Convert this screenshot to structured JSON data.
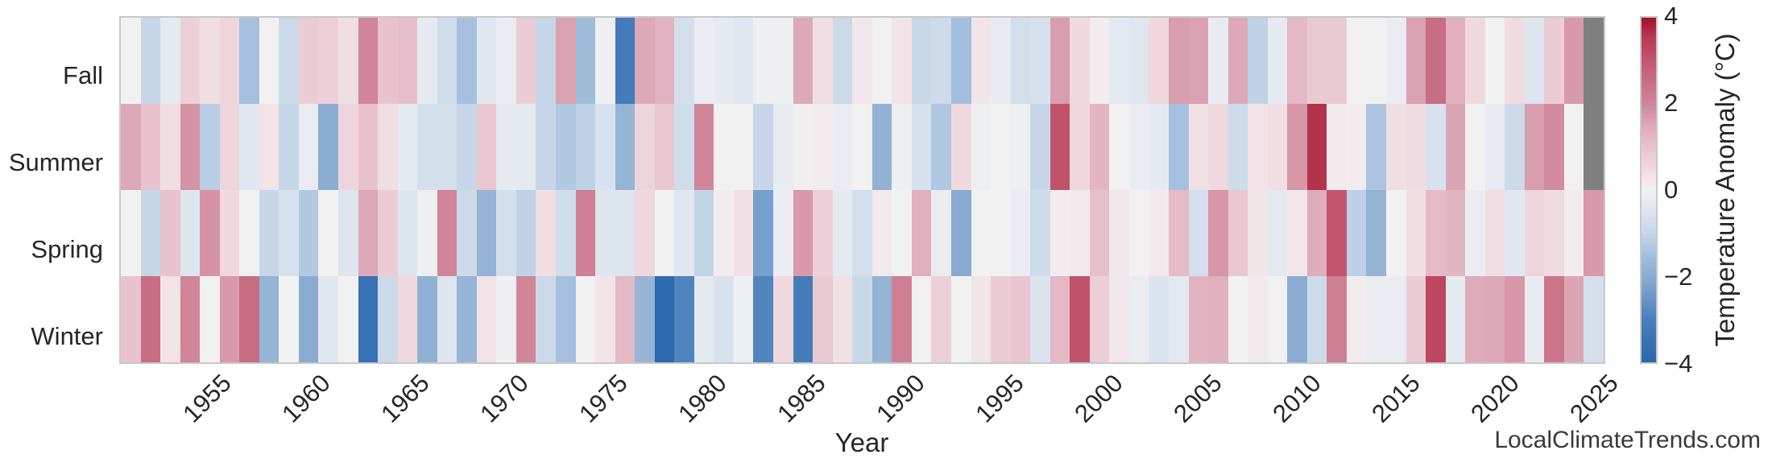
{
  "figure": {
    "watermark": "LocalClimateTrends.com"
  },
  "chart_data": {
    "type": "heatmap",
    "title": "",
    "xlabel": "Year",
    "ylabel": "",
    "rows": [
      "Fall",
      "Summer",
      "Spring",
      "Winter"
    ],
    "x": [
      1950,
      1951,
      1952,
      1953,
      1954,
      1955,
      1956,
      1957,
      1958,
      1959,
      1960,
      1961,
      1962,
      1963,
      1964,
      1965,
      1966,
      1967,
      1968,
      1969,
      1970,
      1971,
      1972,
      1973,
      1974,
      1975,
      1976,
      1977,
      1978,
      1979,
      1980,
      1981,
      1982,
      1983,
      1984,
      1985,
      1986,
      1987,
      1988,
      1989,
      1990,
      1991,
      1992,
      1993,
      1994,
      1995,
      1996,
      1997,
      1998,
      1999,
      2000,
      2001,
      2002,
      2003,
      2004,
      2005,
      2006,
      2007,
      2008,
      2009,
      2010,
      2011,
      2012,
      2013,
      2014,
      2015,
      2016,
      2017,
      2018,
      2019,
      2020,
      2021,
      2022,
      2023,
      2024
    ],
    "series": [
      {
        "name": "Fall",
        "values": [
          0,
          -1.0,
          -0.3,
          0.7,
          0.4,
          0.6,
          -1.5,
          0,
          -0.9,
          0.8,
          0.7,
          0.4,
          2.0,
          1.0,
          1.1,
          -0.3,
          -0.8,
          -1.5,
          -0.4,
          -0.2,
          0.8,
          -1.0,
          1.6,
          -1.6,
          -0.1,
          -3.2,
          1.5,
          1.3,
          -0.7,
          -0.2,
          -0.3,
          -0.4,
          -0.1,
          -0.1,
          1.5,
          0.4,
          -0.9,
          0.2,
          0,
          0.3,
          -0.95,
          -0.85,
          -1.55,
          0.25,
          -0.25,
          -0.75,
          -0.65,
          1.65,
          0.5,
          0.1,
          -0.35,
          -0.45,
          0.55,
          1.65,
          1.6,
          -0.25,
          1.5,
          -1.1,
          -0.3,
          1.2,
          0.85,
          0.85,
          0,
          0,
          -0.2,
          1.6,
          2.5,
          1.35,
          0.5,
          0,
          0.45,
          -0.5,
          0.8,
          1.7,
          null
        ]
      },
      {
        "name": "Summer",
        "values": [
          1.5,
          1.0,
          0.4,
          1.8,
          -1.2,
          0.6,
          -0.4,
          0.3,
          -1.0,
          -0.2,
          -2.0,
          0.6,
          1.0,
          0.4,
          -0.3,
          -0.7,
          -0.7,
          -1.0,
          0.9,
          -0.3,
          -0.3,
          -1.0,
          -1.3,
          -1.1,
          -0.6,
          -1.8,
          0.6,
          0.9,
          -0.8,
          2.0,
          0,
          0,
          -1.0,
          -0.25,
          0.05,
          0.1,
          -0.2,
          0,
          -1.85,
          -0.1,
          -0.65,
          -1.35,
          0.5,
          -0.1,
          0,
          -0.1,
          -1.0,
          3.1,
          0.55,
          1.25,
          0,
          -0.2,
          -0.3,
          -1.5,
          0.35,
          0.5,
          -0.85,
          0.3,
          0.4,
          1.75,
          3.6,
          0.15,
          0.1,
          -1.4,
          0.4,
          0.45,
          -0.6,
          1.55,
          0,
          -0.25,
          -0.9,
          1.65,
          1.9,
          0,
          null
        ]
      },
      {
        "name": "Spring",
        "values": [
          0,
          -1.0,
          1.0,
          -0.5,
          1.8,
          0.5,
          0,
          -1.0,
          -0.6,
          -1.3,
          0,
          -0.5,
          1.5,
          0.8,
          -0.5,
          -0.1,
          2.0,
          -0.9,
          -1.8,
          -0.7,
          -1.1,
          0.4,
          -0.8,
          2.1,
          -0.5,
          -0.5,
          0.55,
          0,
          -0.4,
          -1.05,
          0.1,
          0.35,
          -2.3,
          -0.2,
          1.7,
          0.7,
          -0.3,
          -0.75,
          0.15,
          0,
          1.35,
          -0.2,
          -2.05,
          0,
          0,
          -0.2,
          -0.85,
          0.1,
          0.15,
          1.05,
          0.2,
          0,
          0.15,
          1.15,
          -0.7,
          1.75,
          0.9,
          0.25,
          -0.35,
          0.2,
          1.4,
          3.0,
          -1.15,
          -1.8,
          0,
          0.4,
          1.15,
          1.25,
          -0.2,
          0.4,
          -0.4,
          0.6,
          0.45,
          0.1,
          1.7
        ]
      },
      {
        "name": "Winter",
        "values": [
          1.0,
          2.5,
          0.3,
          2.0,
          0,
          1.7,
          2.5,
          -1.8,
          0,
          -2.0,
          -0.4,
          0,
          -3.6,
          -0.9,
          0.5,
          -1.9,
          -0.5,
          -1.8,
          0.3,
          -0.05,
          2.0,
          -0.9,
          -1.5,
          0,
          0.3,
          1.2,
          -1.8,
          -3.9,
          -2.9,
          -0.3,
          -0.6,
          -0.1,
          -2.9,
          0.5,
          -3.2,
          0.85,
          0.35,
          -0.95,
          -1.8,
          2.1,
          0,
          0.7,
          0,
          0.25,
          0.8,
          0.95,
          -0.55,
          1.2,
          3.1,
          0.75,
          0.2,
          -0.2,
          -0.55,
          -0.35,
          1.3,
          1.35,
          0,
          0.15,
          0,
          -2.0,
          -0.85,
          2.1,
          0.1,
          -0.2,
          -0.2,
          0.8,
          3.3,
          -0.3,
          1.45,
          1.5,
          1.75,
          -0.25,
          2.35,
          1.55,
          -0.7
        ]
      }
    ],
    "x_ticks": [
      "1955",
      "1960",
      "1965",
      "1970",
      "1975",
      "1980",
      "1985",
      "1990",
      "1995",
      "2000",
      "2005",
      "2010",
      "2015",
      "2020",
      "2025"
    ],
    "x_tick_years": [
      1955,
      1960,
      1965,
      1970,
      1975,
      1980,
      1985,
      1990,
      1995,
      2000,
      2005,
      2010,
      2015,
      2020,
      2025
    ],
    "colorbar": {
      "label": "Temperature Anomaly (°C)",
      "ticks": [
        "4",
        "2",
        "0",
        "−2",
        "−4"
      ],
      "tick_values": [
        4,
        2,
        0,
        -2,
        -4
      ],
      "vmin": -4,
      "vmax": 4
    },
    "missing_color": "#7f7f7f",
    "color_scale": [
      [
        -4,
        "#2a67ae"
      ],
      [
        -3,
        "#4a80bc"
      ],
      [
        -2,
        "#8aacd1"
      ],
      [
        -1.5,
        "#a5c0de"
      ],
      [
        -1,
        "#c6d6e8"
      ],
      [
        -0.5,
        "#dde5ef"
      ],
      [
        0,
        "#f2f1f2"
      ],
      [
        0.5,
        "#f0d9de"
      ],
      [
        1,
        "#e8c3cd"
      ],
      [
        1.5,
        "#dda8b7"
      ],
      [
        2,
        "#d08599"
      ],
      [
        2.5,
        "#c96d84"
      ],
      [
        3,
        "#c25670"
      ],
      [
        3.5,
        "#b93c55"
      ],
      [
        4,
        "#a21127"
      ]
    ],
    "legend_position": "right-colorbar",
    "grid": false,
    "xlim": [
      1950,
      2025
    ],
    "axis_text_color": "#262626"
  }
}
